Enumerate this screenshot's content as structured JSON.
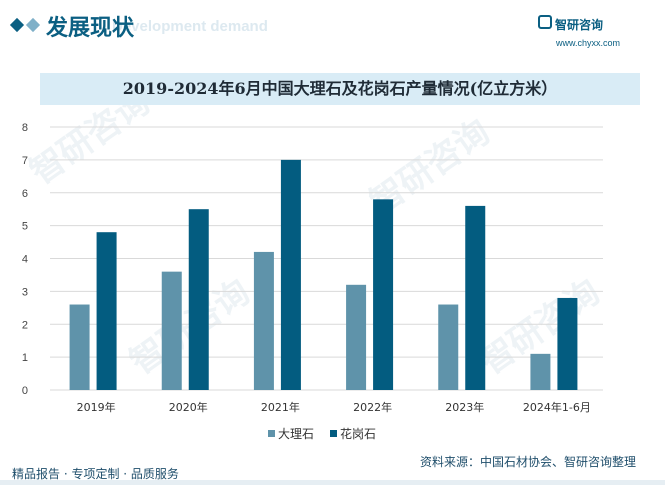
{
  "header": {
    "section_title": "发展现状",
    "section_subtitle": "Development demand",
    "brand_name": "智研咨询",
    "brand_url": "www.chyxx.com"
  },
  "footer": {
    "left_text": "精品报告 · 专项定制 · 品质服务",
    "source": "资料来源：中国石材协会、智研咨询整理",
    "brand_mark": "智研咨询"
  },
  "colors": {
    "marble": "#5f93aa",
    "granite": "#035c80",
    "accent": "#0b5f82"
  },
  "chart_data": {
    "type": "bar",
    "title": "2019-2024年6月中国大理石及花岗石产量情况(亿立方米）",
    "xlabel": "",
    "ylabel": "",
    "categories": [
      "2019年",
      "2020年",
      "2021年",
      "2022年",
      "2023年",
      "2024年1-6月"
    ],
    "series": [
      {
        "name": "大理石",
        "values": [
          2.6,
          3.6,
          4.2,
          3.2,
          2.6,
          1.1
        ]
      },
      {
        "name": "花岗石",
        "values": [
          4.8,
          5.5,
          7.0,
          5.8,
          5.6,
          2.8
        ]
      }
    ],
    "ylim": [
      0,
      8
    ],
    "yticks": [
      0,
      1,
      2,
      3,
      4,
      5,
      6,
      7,
      8
    ],
    "grid": true,
    "legend": "bottom"
  }
}
